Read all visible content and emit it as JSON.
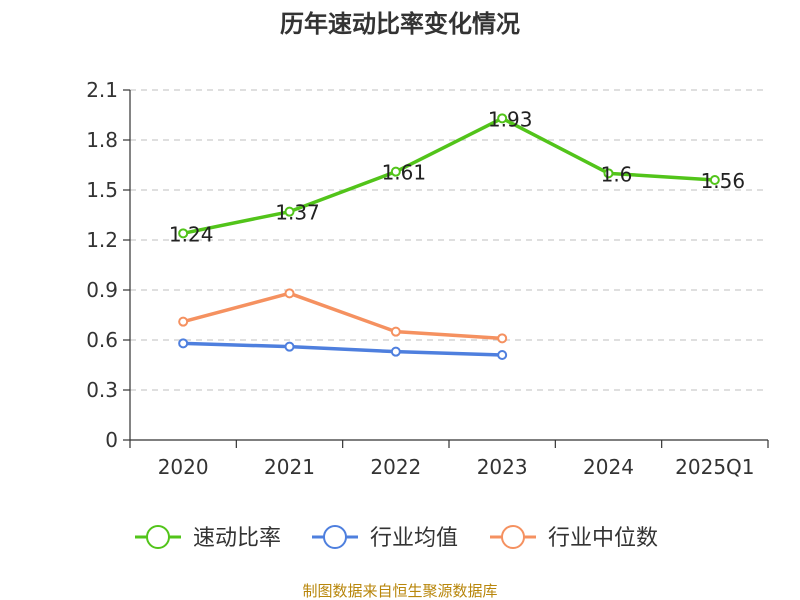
{
  "chart_data": {
    "type": "line",
    "title": "历年速动比率变化情况",
    "categories": [
      "2020",
      "2021",
      "2022",
      "2023",
      "2024",
      "2025Q1"
    ],
    "yticks": [
      "0",
      "0.3",
      "0.6",
      "0.9",
      "1.2",
      "1.5",
      "1.8",
      "2.1"
    ],
    "ylim": [
      0,
      2.1
    ],
    "grid": true,
    "legend_position": "bottom",
    "series": [
      {
        "name": "速动比率",
        "color": "#52c41a",
        "values": [
          1.24,
          1.37,
          1.61,
          1.93,
          1.6,
          1.56
        ],
        "labels": [
          "1.24",
          "1.37",
          "1.61",
          "1.93",
          "1.6",
          "1.56"
        ]
      },
      {
        "name": "行业均值",
        "color": "#4e7fde",
        "values": [
          0.58,
          0.56,
          0.53,
          0.51,
          null,
          null
        ]
      },
      {
        "name": "行业中位数",
        "color": "#f59160",
        "values": [
          0.71,
          0.88,
          0.65,
          0.61,
          null,
          null
        ]
      }
    ]
  },
  "source": "制图数据来自恒生聚源数据库"
}
